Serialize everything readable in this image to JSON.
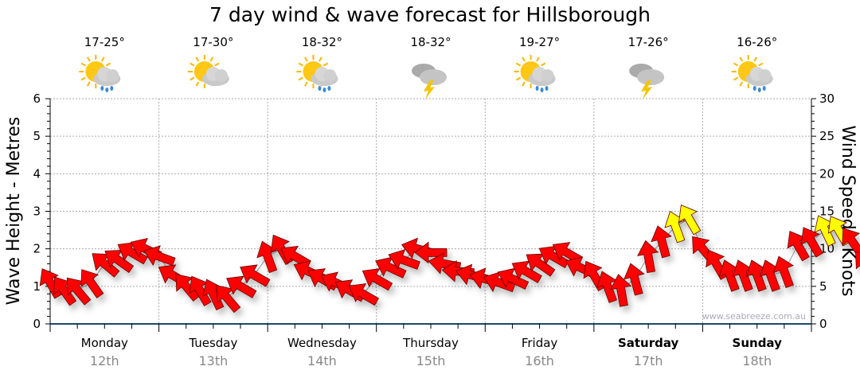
{
  "chart_data": {
    "type": "scatter",
    "title": "7 day wind & wave forecast for Hillsborough",
    "ylabel_left": "Wave Height - Metres",
    "ylabel_right": "Wind Speed - Knots",
    "ylim_left": [
      0,
      6
    ],
    "ylim_right": [
      0,
      30
    ],
    "yticks_left": [
      "0",
      "1",
      "2",
      "3",
      "4",
      "5",
      "6"
    ],
    "yticks_right": [
      "0",
      "5",
      "10",
      "15",
      "20",
      "25",
      "30"
    ],
    "grid": true,
    "watermark": "www.seabreeze.com.au",
    "days": [
      {
        "day": "Monday",
        "date": "12th",
        "temp": "17-25°",
        "icon": "sun-cloud-rain",
        "bold": false
      },
      {
        "day": "Tuesday",
        "date": "13th",
        "temp": "17-30°",
        "icon": "sun-cloud",
        "bold": false
      },
      {
        "day": "Wednesday",
        "date": "14th",
        "temp": "18-32°",
        "icon": "sun-cloud-rain",
        "bold": false
      },
      {
        "day": "Thursday",
        "date": "15th",
        "temp": "18-32°",
        "icon": "cloud-storm",
        "bold": false
      },
      {
        "day": "Friday",
        "date": "16th",
        "temp": "19-27°",
        "icon": "sun-cloud-rain",
        "bold": false
      },
      {
        "day": "Saturday",
        "date": "17th",
        "temp": "17-26°",
        "icon": "cloud-storm",
        "bold": true
      },
      {
        "day": "Sunday",
        "date": "18th",
        "temp": "16-26°",
        "icon": "sun-cloud-rain",
        "bold": true
      }
    ],
    "wind_interval_hours": 3,
    "wind_knots": [
      5.5,
      4.5,
      4.5,
      5.5,
      8,
      8.5,
      9.5,
      10,
      9,
      6.5,
      5,
      4.5,
      4,
      3.5,
      5,
      6.5,
      9,
      10,
      9,
      7,
      6,
      5.5,
      4.5,
      4,
      6,
      7.5,
      8.5,
      10,
      9.5,
      8,
      7,
      6.5,
      6,
      5.5,
      6,
      7,
      8,
      9,
      9.5,
      7.5,
      6.5,
      5,
      4.5,
      6,
      9,
      11,
      13,
      14,
      10,
      8,
      6.5,
      6.5,
      6.5,
      6.5,
      7,
      10.5,
      11,
      12.5,
      12.5,
      11,
      8,
      6,
      5.5,
      5.5,
      5.5,
      5.5,
      6,
      9.5,
      10.5,
      10,
      11.5,
      9,
      6.5,
      5
    ],
    "wind_dir_deg": [
      330,
      325,
      320,
      325,
      310,
      305,
      300,
      295,
      290,
      300,
      320,
      330,
      335,
      320,
      300,
      300,
      340,
      330,
      300,
      295,
      300,
      295,
      300,
      300,
      300,
      295,
      290,
      285,
      270,
      280,
      275,
      285,
      285,
      290,
      295,
      300,
      305,
      300,
      300,
      295,
      330,
      340,
      350,
      345,
      350,
      345,
      340,
      330,
      320,
      330,
      340,
      340,
      340,
      340,
      340,
      330,
      330,
      335,
      330,
      325,
      320,
      340,
      340,
      340,
      340,
      340,
      340,
      345,
      340,
      330,
      330,
      320,
      320,
      320
    ],
    "highlight_threshold_knots": 12,
    "colors": {
      "normal": "#ff0000",
      "strong": "#ffff00"
    }
  }
}
